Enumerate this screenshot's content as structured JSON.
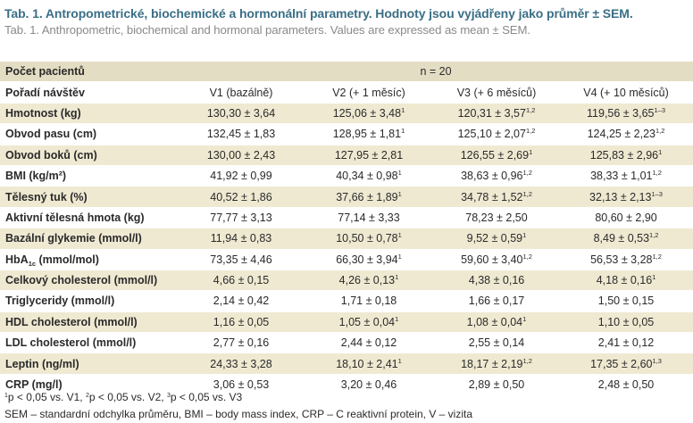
{
  "caption": {
    "czech": "Tab. 1. Antropometrické, biochemické a hormonální parametry. Hodnoty jsou vyjádřeny jako průměr ± SEM.",
    "english": "Tab. 1. Anthropometric, biochemical and hormonal parameters. Values are expressed as mean ± SEM."
  },
  "table": {
    "patients_label": "Počet pacientů",
    "patients_value": "n = 20",
    "visit_label": "Pořadí návštěv",
    "columns": [
      "V1 (bazálně)",
      "V2 (+ 1 měsíc)",
      "V3 (+ 6 měsíců)",
      "V4 (+ 10 měsíců)"
    ],
    "rows": [
      {
        "label": "Hmotnost (kg)",
        "label_sub": "",
        "label_post": "",
        "cells": [
          {
            "v": "130,30 ± 3,64",
            "s": ""
          },
          {
            "v": "125,06 ± 3,48",
            "s": "1"
          },
          {
            "v": "120,31 ± 3,57",
            "s": "1,2"
          },
          {
            "v": "119,56 ± 3,65",
            "s": "1–3"
          }
        ]
      },
      {
        "label": "Obvod pasu (cm)",
        "label_sub": "",
        "label_post": "",
        "cells": [
          {
            "v": "132,45 ± 1,83",
            "s": ""
          },
          {
            "v": "128,95 ± 1,81",
            "s": "1"
          },
          {
            "v": "125,10 ± 2,07",
            "s": "1,2"
          },
          {
            "v": "124,25 ± 2,23",
            "s": "1,2"
          }
        ]
      },
      {
        "label": "Obvod boků (cm)",
        "label_sub": "",
        "label_post": "",
        "cells": [
          {
            "v": "130,00 ± 2,43",
            "s": ""
          },
          {
            "v": "127,95 ± 2,81",
            "s": ""
          },
          {
            "v": "126,55 ± 2,69",
            "s": "1"
          },
          {
            "v": "125,83 ± 2,96",
            "s": "1"
          }
        ]
      },
      {
        "label": "BMI (kg/m²)",
        "label_sub": "",
        "label_post": "",
        "cells": [
          {
            "v": "41,92 ± 0,99",
            "s": ""
          },
          {
            "v": "40,34 ± 0,98",
            "s": "1"
          },
          {
            "v": "38,63 ± 0,96",
            "s": "1,2"
          },
          {
            "v": "38,33 ± 1,01",
            "s": "1,2"
          }
        ]
      },
      {
        "label": "Tělesný tuk (%)",
        "label_sub": "",
        "label_post": "",
        "cells": [
          {
            "v": "40,52 ± 1,86",
            "s": ""
          },
          {
            "v": "37,66 ± 1,89",
            "s": "1"
          },
          {
            "v": "34,78 ± 1,52",
            "s": "1,2"
          },
          {
            "v": "32,13 ± 2,13",
            "s": "1–3"
          }
        ]
      },
      {
        "label": "Aktivní tělesná hmota (kg)",
        "label_sub": "",
        "label_post": "",
        "cells": [
          {
            "v": "77,77 ± 3,13",
            "s": ""
          },
          {
            "v": "77,14 ± 3,33",
            "s": ""
          },
          {
            "v": "78,23 ± 2,50",
            "s": ""
          },
          {
            "v": "80,60 ± 2,90",
            "s": ""
          }
        ]
      },
      {
        "label": "Bazální glykemie (mmol/l)",
        "label_sub": "",
        "label_post": "",
        "cells": [
          {
            "v": "11,94 ± 0,83",
            "s": ""
          },
          {
            "v": "10,50 ± 0,78",
            "s": "1"
          },
          {
            "v": "9,52 ± 0,59",
            "s": "1"
          },
          {
            "v": "8,49 ± 0,53",
            "s": "1,2"
          }
        ]
      },
      {
        "label": "HbA",
        "label_sub": "1c",
        "label_post": " (mmol/mol)",
        "cells": [
          {
            "v": "73,35 ± 4,46",
            "s": ""
          },
          {
            "v": "66,30 ± 3,94",
            "s": "1"
          },
          {
            "v": "59,60 ± 3,40",
            "s": "1,2"
          },
          {
            "v": "56,53 ± 3,28",
            "s": "1,2"
          }
        ]
      },
      {
        "label": "Celkový cholesterol (mmol/l)",
        "label_sub": "",
        "label_post": "",
        "cells": [
          {
            "v": "4,66 ± 0,15",
            "s": ""
          },
          {
            "v": "4,26 ± 0,13",
            "s": "1"
          },
          {
            "v": "4,38 ± 0,16",
            "s": ""
          },
          {
            "v": "4,18 ± 0,16",
            "s": "1"
          }
        ]
      },
      {
        "label": "Triglyceridy (mmol/l)",
        "label_sub": "",
        "label_post": "",
        "cells": [
          {
            "v": "2,14 ± 0,42",
            "s": ""
          },
          {
            "v": "1,71 ± 0,18",
            "s": ""
          },
          {
            "v": "1,66 ± 0,17",
            "s": ""
          },
          {
            "v": "1,50 ± 0,15",
            "s": ""
          }
        ]
      },
      {
        "label": "HDL cholesterol (mmol/l)",
        "label_sub": "",
        "label_post": "",
        "cells": [
          {
            "v": "1,16 ± 0,05",
            "s": ""
          },
          {
            "v": "1,05 ± 0,04",
            "s": "1"
          },
          {
            "v": "1,08 ± 0,04",
            "s": "1"
          },
          {
            "v": "1,10 ± 0,05",
            "s": ""
          }
        ]
      },
      {
        "label": "LDL cholesterol (mmol/l)",
        "label_sub": "",
        "label_post": "",
        "cells": [
          {
            "v": "2,77 ± 0,16",
            "s": ""
          },
          {
            "v": "2,44 ± 0,12",
            "s": ""
          },
          {
            "v": "2,55 ± 0,14",
            "s": ""
          },
          {
            "v": "2,41 ± 0,12",
            "s": ""
          }
        ]
      },
      {
        "label": "Leptin (ng/ml)",
        "label_sub": "",
        "label_post": "",
        "cells": [
          {
            "v": "24,33 ± 3,28",
            "s": ""
          },
          {
            "v": "18,10 ± 2,41",
            "s": "1"
          },
          {
            "v": "18,17 ± 2,19",
            "s": "1,2"
          },
          {
            "v": "17,35 ± 2,60",
            "s": "1,3"
          }
        ]
      },
      {
        "label": "CRP (mg/l)",
        "label_sub": "",
        "label_post": "",
        "cells": [
          {
            "v": "3,06 ± 0,53",
            "s": ""
          },
          {
            "v": "3,20 ± 0,46",
            "s": ""
          },
          {
            "v": "2,89 ± 0,50",
            "s": ""
          },
          {
            "v": "2,48 ± 0,50",
            "s": ""
          }
        ]
      }
    ]
  },
  "footnotes": {
    "line1": [
      {
        "sup": "1",
        "text": "p < 0,05 vs. V1, "
      },
      {
        "sup": "2",
        "text": "p < 0,05 vs. V2, "
      },
      {
        "sup": "3",
        "text": "p < 0,05 vs. V3"
      }
    ],
    "line2": "SEM – standardní odchylka průměru, BMI – body mass index, CRP – C reaktivní protein, V – vizita"
  },
  "colors": {
    "caption_accent": "#3a6f86",
    "row_shade": "#efe9d2",
    "header_shade": "#e3ddc3"
  }
}
